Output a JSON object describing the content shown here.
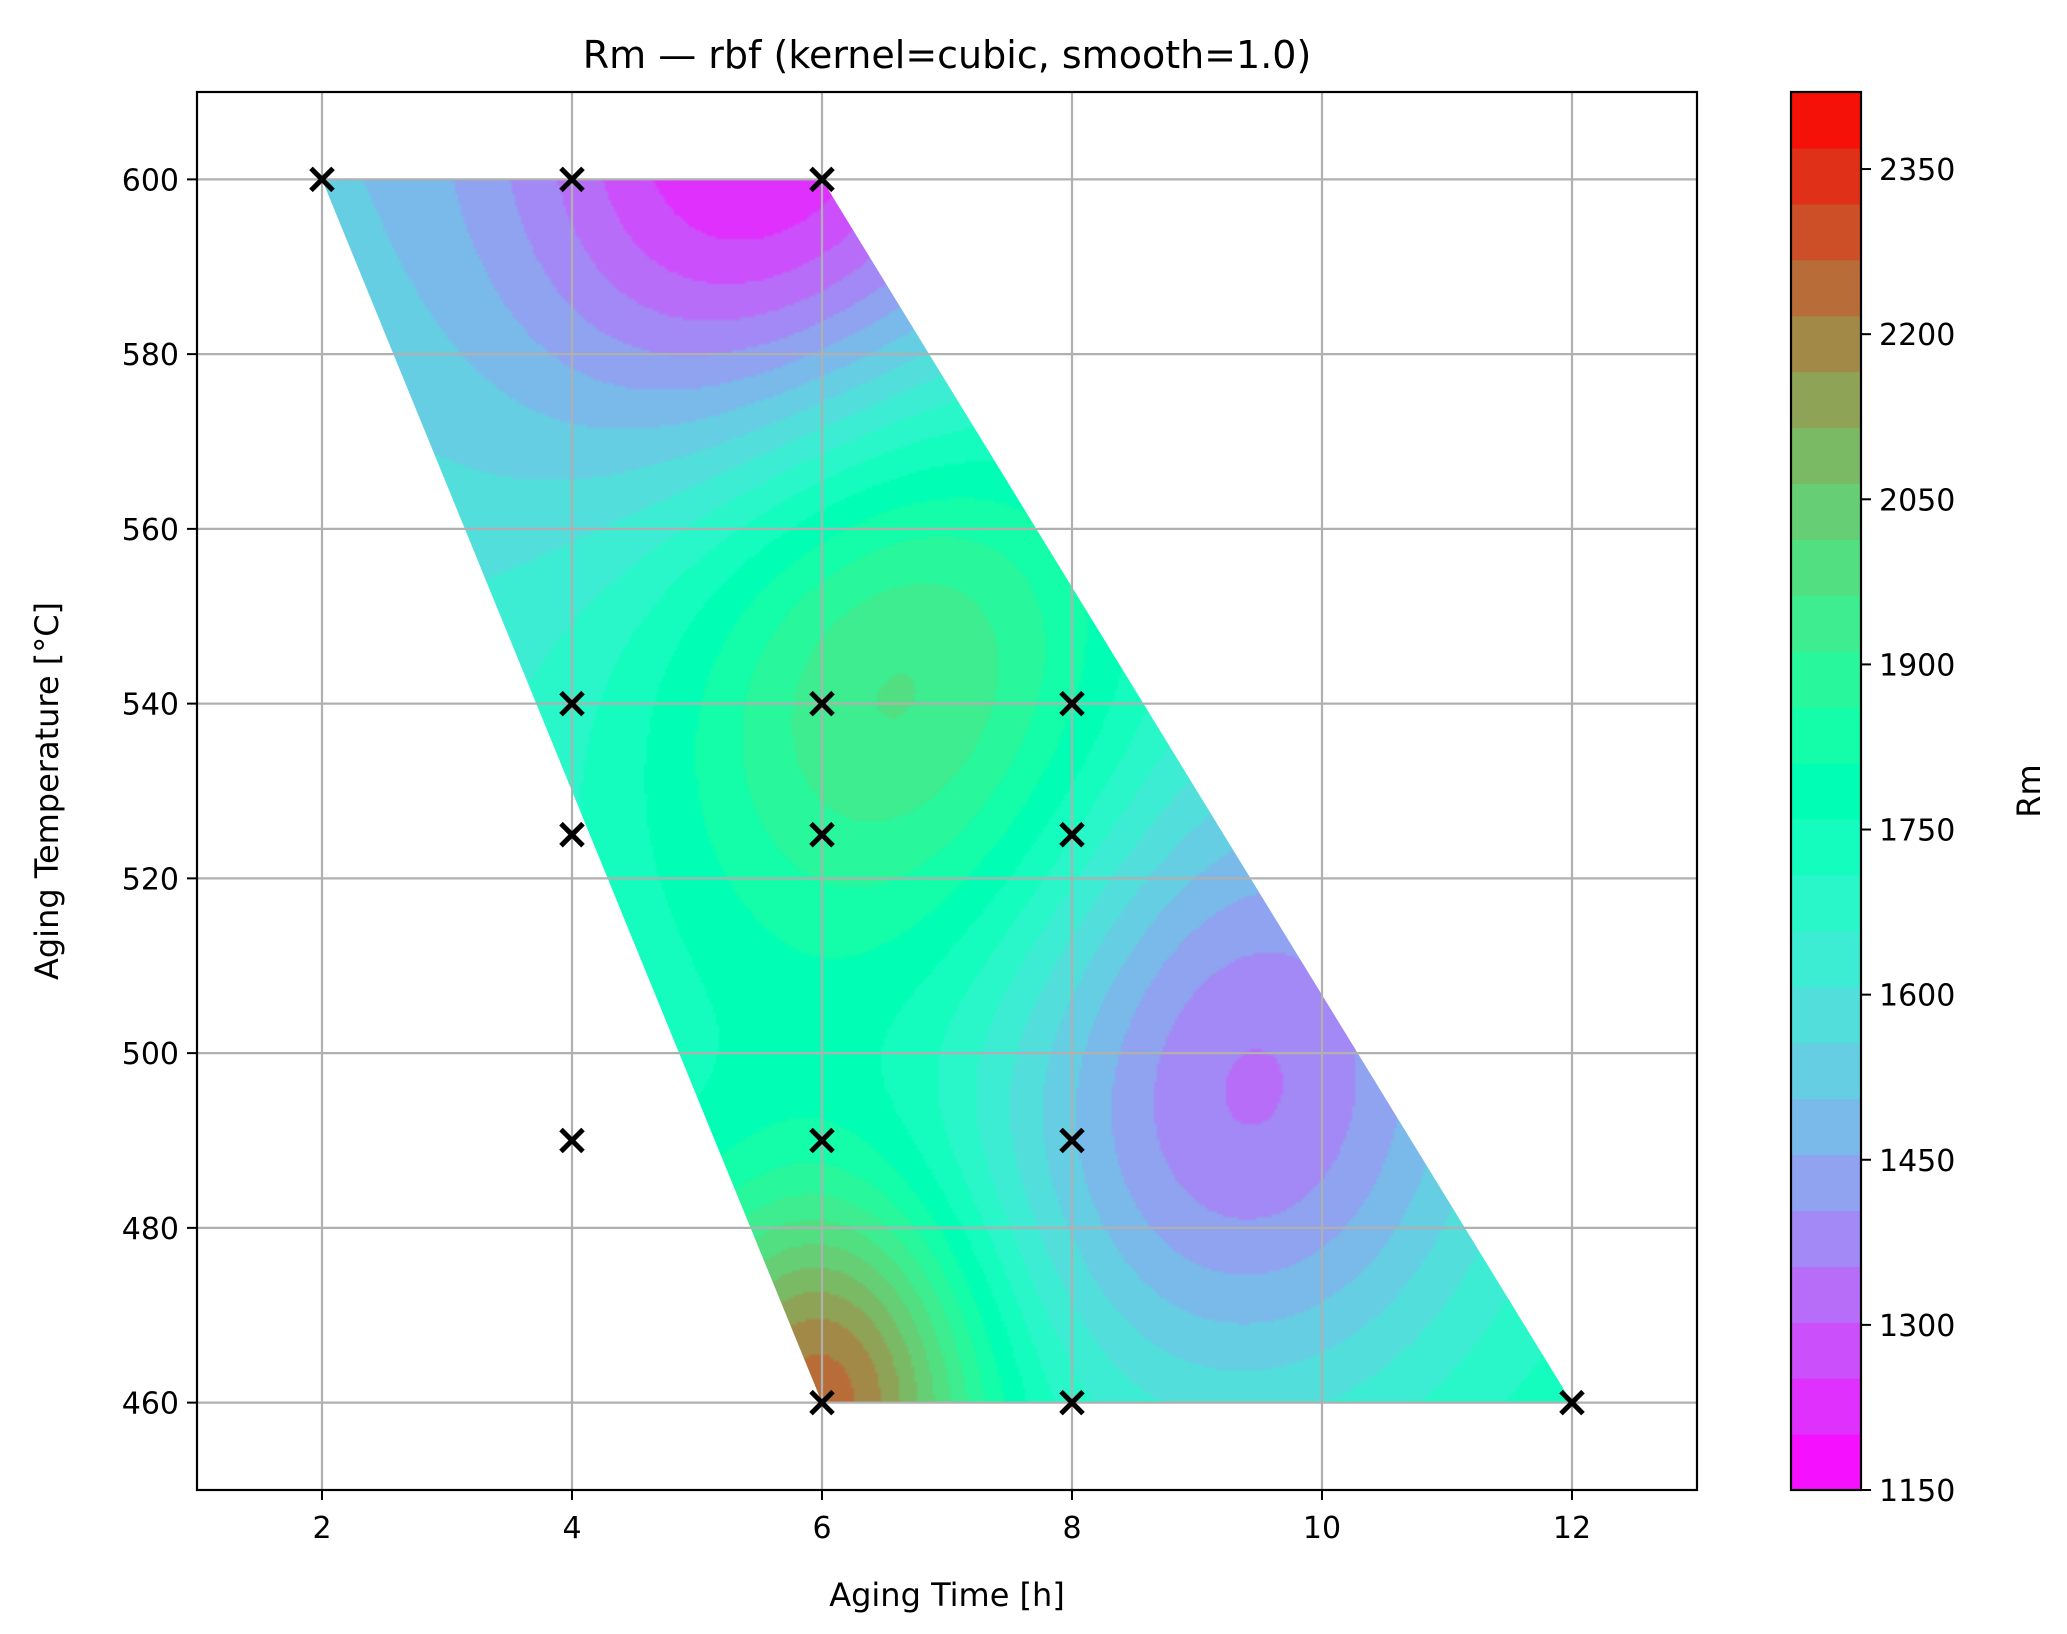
{
  "chart_data": {
    "type": "heatmap",
    "title": "Rm — rbf (kernel=cubic, smooth=1.0)",
    "xlabel": "Aging Time [h]",
    "ylabel": "Aging Temperature [°C]",
    "xlim": [
      1,
      13
    ],
    "ylim": [
      450,
      610
    ],
    "xticks": [
      2,
      4,
      6,
      8,
      10,
      12
    ],
    "yticks": [
      460,
      480,
      500,
      520,
      540,
      560,
      580,
      600
    ],
    "grid": true,
    "colorbar": {
      "label": "Rm",
      "range": [
        1150,
        2420
      ],
      "ticks": [
        1150,
        1300,
        1450,
        1600,
        1750,
        1900,
        2050,
        2200,
        2350
      ],
      "levels": 25,
      "colormap": "rainbow",
      "placement": "right"
    },
    "domain_polygon": {
      "x": [
        2,
        6,
        12,
        8,
        6
      ],
      "y": [
        600,
        600,
        460,
        460,
        460
      ]
    },
    "features": [
      {
        "kind": "max",
        "x": 6.6,
        "y": 547,
        "value": 2230
      },
      {
        "kind": "max",
        "x": 6.0,
        "y": 461,
        "value": 2400
      },
      {
        "kind": "min",
        "x": 9.4,
        "y": 495,
        "value": 1210
      },
      {
        "kind": "min",
        "x": 5.6,
        "y": 600,
        "value": 1180
      }
    ],
    "samples": {
      "marker": "x",
      "x": [
        2,
        4,
        6,
        4,
        6,
        8,
        4,
        6,
        8,
        4,
        6,
        8,
        6,
        8,
        12
      ],
      "y": [
        600,
        600,
        600,
        540,
        540,
        540,
        525,
        525,
        525,
        490,
        490,
        490,
        460,
        460,
        460
      ]
    }
  }
}
